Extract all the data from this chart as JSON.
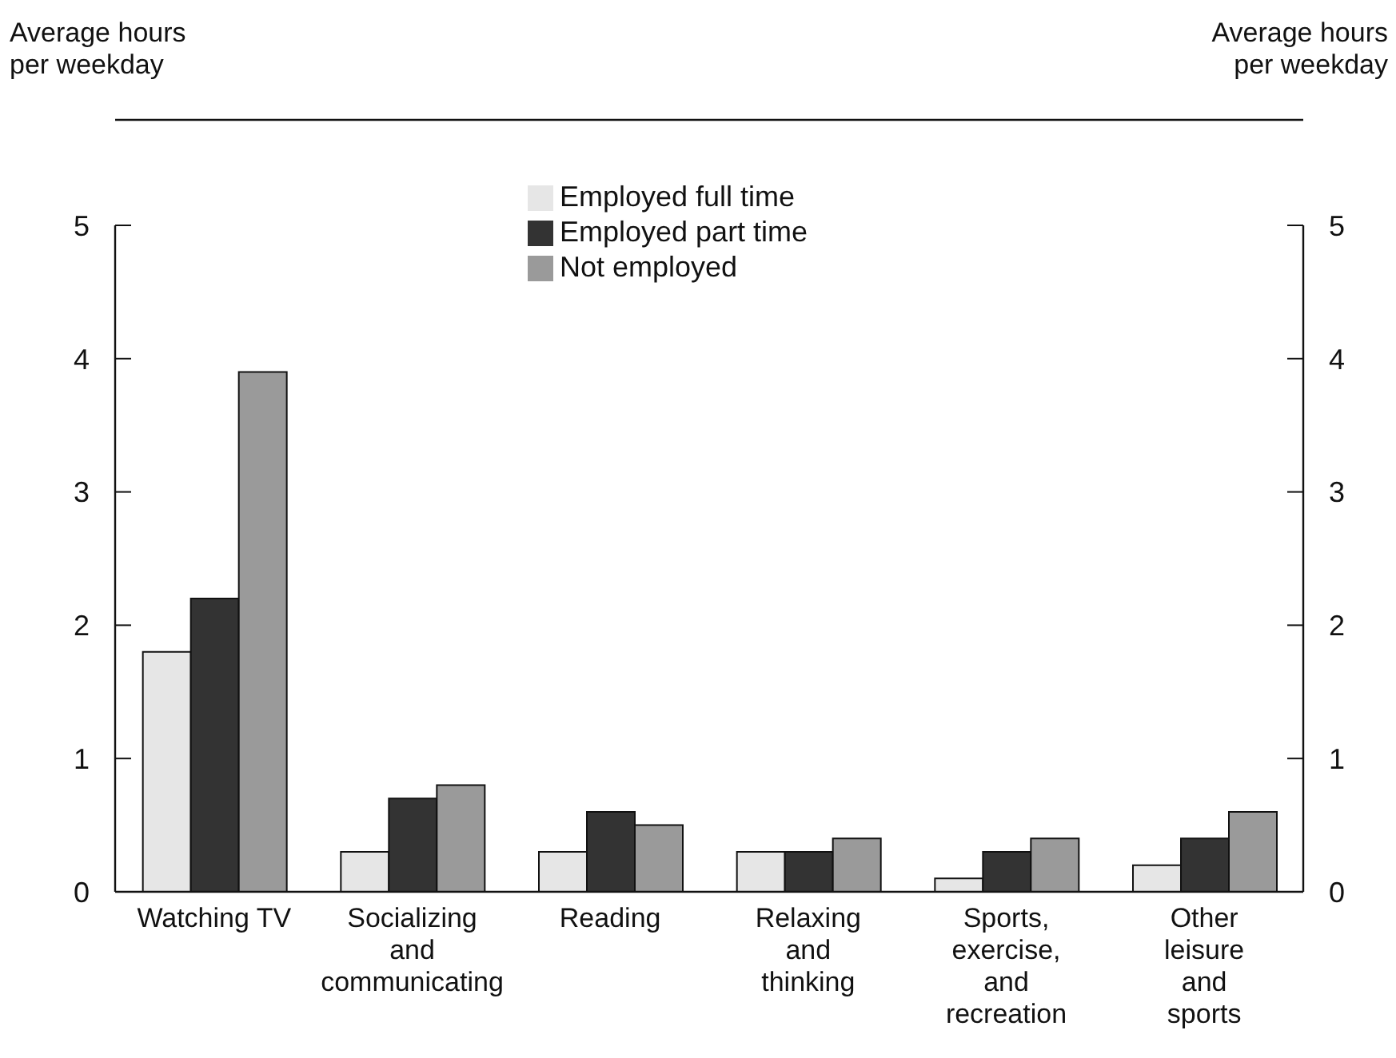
{
  "chart_data": {
    "type": "bar",
    "ylabel": "Average hours\nper weekday",
    "y2label": "Average hours\nper weekday",
    "categories": [
      "Watching TV",
      "Socializing\nand\ncommunicating",
      "Reading",
      "Relaxing\nand\nthinking",
      "Sports,\nexercise,\nand\nrecreation",
      "Other\nleisure\nand\nsports"
    ],
    "series": [
      {
        "name": "Employed full time",
        "color": "#e6e6e6",
        "values": [
          1.8,
          0.3,
          0.3,
          0.3,
          0.1,
          0.2
        ]
      },
      {
        "name": "Employed part time",
        "color": "#333333",
        "values": [
          2.2,
          0.7,
          0.6,
          0.3,
          0.3,
          0.4
        ]
      },
      {
        "name": "Not employed",
        "color": "#9a9a9a",
        "values": [
          3.9,
          0.8,
          0.5,
          0.4,
          0.4,
          0.6
        ]
      }
    ],
    "ylim": [
      0,
      5
    ],
    "yticks": [
      0,
      1,
      2,
      3,
      4,
      5
    ],
    "y2lim": [
      0,
      5
    ],
    "y2ticks": [
      0,
      1,
      2,
      3,
      4,
      5
    ],
    "grid": false,
    "legend": "top"
  }
}
